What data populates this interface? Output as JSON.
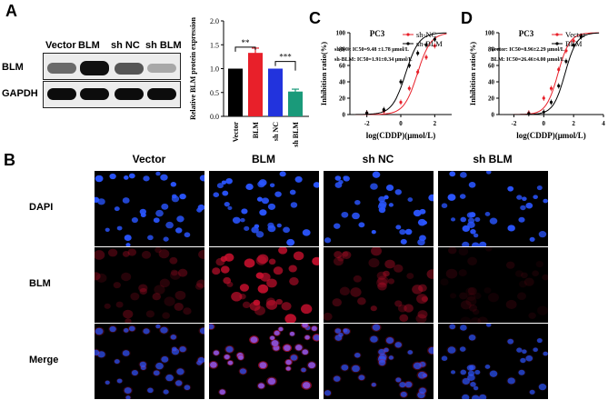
{
  "figure": {
    "panel_labels": {
      "A": "A",
      "B": "B",
      "C": "C",
      "D": "D"
    },
    "western_blot": {
      "lanes": [
        "Vector",
        "BLM",
        "sh NC",
        "sh BLM"
      ],
      "proteins": [
        "BLM",
        "GAPDH"
      ],
      "blm_intensity": [
        0.62,
        0.95,
        0.7,
        0.32
      ],
      "gapdh_intensity": [
        0.92,
        0.92,
        0.92,
        0.92
      ]
    },
    "colors": {
      "vector": "#000000",
      "blm": "#e8202a",
      "sh_nc": "#2233dd",
      "sh_blm": "#1a9a7a",
      "dapi": "#2a55ff",
      "blm_stain": "#c8102e",
      "merge": "#a050d0"
    },
    "microscopy": {
      "columns": [
        "Vector",
        "BLM",
        "sh NC",
        "sh BLM"
      ],
      "rows": [
        "DAPI",
        "BLM",
        "Merge"
      ]
    }
  },
  "chart_data": [
    {
      "type": "bar",
      "categories": [
        "Vector",
        "BLM",
        "sh NC",
        "sh BLM"
      ],
      "values": [
        1.0,
        1.33,
        1.0,
        0.52
      ],
      "errors": [
        0.0,
        0.1,
        0.0,
        0.05
      ],
      "ylabel": "Relative BLM protein expression",
      "ylim": [
        0,
        2.0
      ],
      "yticks": [
        "0.0",
        "0.5",
        "1.0",
        "1.5",
        "2.0"
      ],
      "annotations": [
        "**",
        "***"
      ]
    },
    {
      "type": "line",
      "title": "PC3",
      "xlabel": "log(CDDP)(μmol/L)",
      "ylabel": "Inhibition ratio(%)",
      "xlim": [
        -3,
        3
      ],
      "ylim": [
        0,
        100
      ],
      "xticks": [
        "-2",
        "0",
        "2"
      ],
      "yticks": [
        "0",
        "20",
        "40",
        "60",
        "80",
        "100"
      ],
      "series": [
        {
          "name": "sh-NC",
          "color": "#e8202a",
          "ic50_log": 0.977,
          "x": [
            -2,
            -1,
            0,
            0.5,
            1,
            1.5,
            2
          ],
          "y": [
            2,
            4,
            15,
            32,
            52,
            70,
            84
          ]
        },
        {
          "name": "sh-BLM",
          "color": "#000000",
          "ic50_log": 0.281,
          "x": [
            -2,
            -1,
            0,
            0.5,
            1,
            1.5,
            2
          ],
          "y": [
            2,
            6,
            40,
            60,
            75,
            85,
            92
          ]
        }
      ],
      "annotations": [
        "sh-NC: IC50=9.48 ±1.78 μmol/L",
        "sh-BLM: IC50=1.91±0.34 μmol/L"
      ]
    },
    {
      "type": "line",
      "title": "PC3",
      "xlabel": "log(CDDP)(μmol/L)",
      "ylabel": "Inhibition ratio(%)",
      "xlim": [
        -3,
        4
      ],
      "ylim": [
        0,
        100
      ],
      "xticks": [
        "-2",
        "0",
        "2",
        "4"
      ],
      "yticks": [
        "0",
        "20",
        "40",
        "60",
        "80",
        "100"
      ],
      "series": [
        {
          "name": "Vector",
          "color": "#e8202a",
          "ic50_log": 0.952,
          "x": [
            -1,
            0,
            0.5,
            1,
            1.5,
            2,
            2.5
          ],
          "y": [
            2,
            20,
            32,
            55,
            78,
            90,
            96
          ]
        },
        {
          "name": "BLM",
          "color": "#000000",
          "ic50_log": 1.423,
          "x": [
            -1,
            0,
            0.5,
            1,
            1.5,
            2,
            2.5
          ],
          "y": [
            1,
            3,
            15,
            35,
            65,
            85,
            95
          ]
        }
      ],
      "annotations": [
        "Vector: IC50=8.96±2.29 μmol/L",
        "BLM: IC50=26.46±4.00 μmol/L"
      ]
    }
  ]
}
